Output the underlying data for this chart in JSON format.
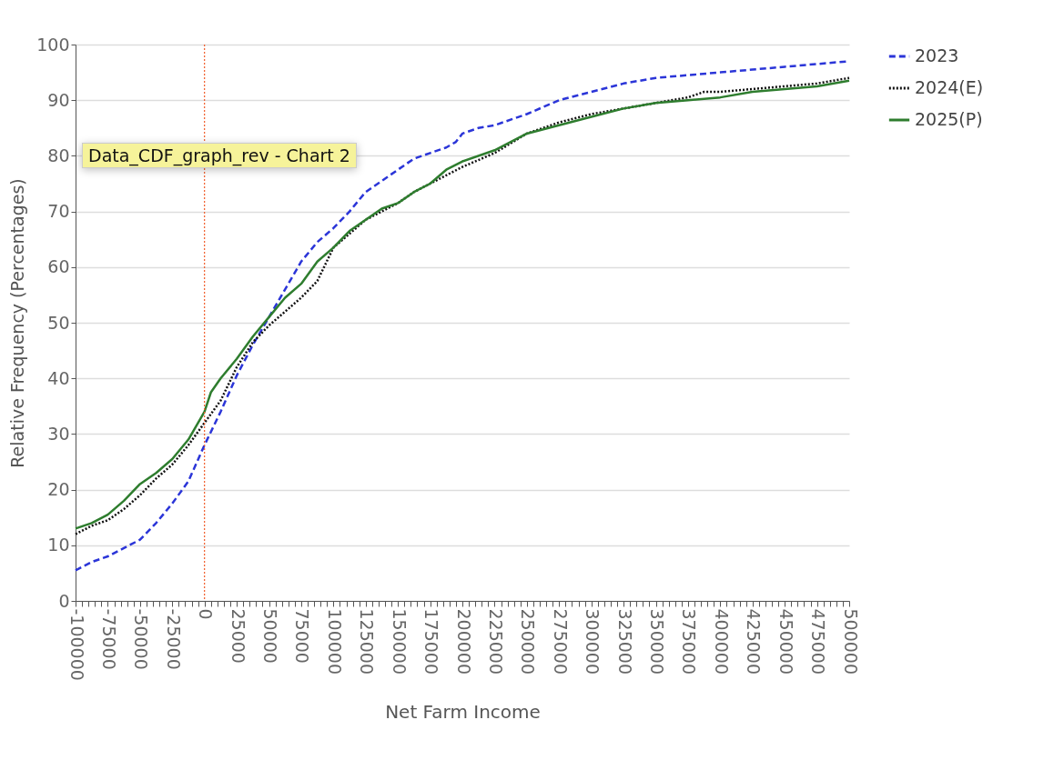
{
  "chart_data": {
    "type": "line",
    "xlabel": "Net Farm Income",
    "ylabel": "Relative Frequency (Percentages)",
    "xlim": [
      -100000,
      500000
    ],
    "ylim": [
      0,
      100
    ],
    "xticks": [
      -100000,
      {
        "value": -95000,
        "label": null
      },
      {
        "value": -90000,
        "label": null
      },
      {
        "value": -85000,
        "label": null
      },
      {
        "value": -80000,
        "label": null
      },
      -75000,
      {
        "value": -70000,
        "label": null
      },
      {
        "value": -65000,
        "label": null
      },
      {
        "value": -60000,
        "label": null
      },
      {
        "value": -55000,
        "label": null
      },
      -50000,
      {
        "value": -45000,
        "label": null
      },
      {
        "value": -40000,
        "label": null
      },
      {
        "value": -35000,
        "label": null
      },
      {
        "value": -30000,
        "label": null
      },
      -25000,
      {
        "value": -20000,
        "label": null
      },
      {
        "value": -15000,
        "label": null
      },
      {
        "value": -10000,
        "label": null
      },
      {
        "value": -5000,
        "label": null
      },
      0,
      {
        "value": 5000,
        "label": null
      },
      {
        "value": 10000,
        "label": null
      },
      {
        "value": 15000,
        "label": null
      },
      {
        "value": 20000,
        "label": null
      },
      25000,
      {
        "value": 30000,
        "label": null
      },
      {
        "value": 35000,
        "label": null
      },
      {
        "value": 40000,
        "label": null
      },
      {
        "value": 45000,
        "label": null
      },
      50000,
      {
        "value": 55000,
        "label": null
      },
      {
        "value": 60000,
        "label": null
      },
      {
        "value": 65000,
        "label": null
      },
      {
        "value": 70000,
        "label": null
      },
      75000,
      {
        "value": 80000,
        "label": null
      },
      {
        "value": 85000,
        "label": null
      },
      {
        "value": 90000,
        "label": null
      },
      {
        "value": 95000,
        "label": null
      },
      100000,
      {
        "value": 105000,
        "label": null
      },
      {
        "value": 110000,
        "label": null
      },
      {
        "value": 115000,
        "label": null
      },
      {
        "value": 120000,
        "label": null
      },
      125000,
      {
        "value": 130000,
        "label": null
      },
      {
        "value": 135000,
        "label": null
      },
      {
        "value": 140000,
        "label": null
      },
      {
        "value": 145000,
        "label": null
      },
      150000,
      {
        "value": 155000,
        "label": null
      },
      {
        "value": 160000,
        "label": null
      },
      {
        "value": 165000,
        "label": null
      },
      {
        "value": 170000,
        "label": null
      },
      175000,
      {
        "value": 180000,
        "label": null
      },
      {
        "value": 185000,
        "label": null
      },
      {
        "value": 190000,
        "label": null
      },
      {
        "value": 195000,
        "label": null
      },
      200000,
      {
        "value": 205000,
        "label": null
      },
      {
        "value": 210000,
        "label": null
      },
      {
        "value": 215000,
        "label": null
      },
      {
        "value": 220000,
        "label": null
      },
      225000,
      {
        "value": 230000,
        "label": null
      },
      {
        "value": 235000,
        "label": null
      },
      {
        "value": 240000,
        "label": null
      },
      {
        "value": 245000,
        "label": null
      },
      250000,
      {
        "value": 255000,
        "label": null
      },
      {
        "value": 260000,
        "label": null
      },
      {
        "value": 265000,
        "label": null
      },
      {
        "value": 270000,
        "label": null
      },
      275000,
      {
        "value": 280000,
        "label": null
      },
      {
        "value": 285000,
        "label": null
      },
      {
        "value": 290000,
        "label": null
      },
      {
        "value": 295000,
        "label": null
      },
      300000,
      {
        "value": 305000,
        "label": null
      },
      {
        "value": 310000,
        "label": null
      },
      {
        "value": 315000,
        "label": null
      },
      {
        "value": 320000,
        "label": null
      },
      325000,
      {
        "value": 330000,
        "label": null
      },
      {
        "value": 335000,
        "label": null
      },
      {
        "value": 340000,
        "label": null
      },
      {
        "value": 345000,
        "label": null
      },
      350000,
      {
        "value": 355000,
        "label": null
      },
      {
        "value": 360000,
        "label": null
      },
      {
        "value": 365000,
        "label": null
      },
      {
        "value": 370000,
        "label": null
      },
      375000,
      {
        "value": 380000,
        "label": null
      },
      {
        "value": 385000,
        "label": null
      },
      {
        "value": 390000,
        "label": null
      },
      {
        "value": 395000,
        "label": null
      },
      400000,
      {
        "value": 405000,
        "label": null
      },
      {
        "value": 410000,
        "label": null
      },
      {
        "value": 415000,
        "label": null
      },
      {
        "value": 420000,
        "label": null
      },
      425000,
      {
        "value": 430000,
        "label": null
      },
      {
        "value": 435000,
        "label": null
      },
      {
        "value": 440000,
        "label": null
      },
      {
        "value": 445000,
        "label": null
      },
      450000,
      {
        "value": 455000,
        "label": null
      },
      {
        "value": 460000,
        "label": null
      },
      {
        "value": 465000,
        "label": null
      },
      {
        "value": 470000,
        "label": null
      },
      475000,
      {
        "value": 480000,
        "label": null
      },
      {
        "value": 485000,
        "label": null
      },
      {
        "value": 490000,
        "label": null
      },
      {
        "value": 495000,
        "label": null
      },
      500000
    ],
    "yticks": [
      0,
      10,
      20,
      30,
      40,
      50,
      60,
      70,
      80,
      90,
      100
    ],
    "grid": "y",
    "legend": "top right",
    "marker": "none",
    "series": [
      {
        "name": "2023",
        "color": "#2b35d8",
        "line_style": "dashed",
        "x": [
          -100000,
          -87500,
          -75000,
          -62500,
          -50000,
          -37500,
          -25000,
          -12500,
          0,
          12500,
          25000,
          37500,
          50000,
          62500,
          75000,
          87500,
          100000,
          112500,
          125000,
          137500,
          150000,
          162500,
          175000,
          187500,
          195000,
          200000,
          212500,
          225000,
          250000,
          275000,
          300000,
          325000,
          350000,
          375000,
          400000,
          425000,
          450000,
          475000,
          500000
        ],
        "values": [
          5.5,
          7,
          8,
          9.5,
          11,
          14,
          17.5,
          21.5,
          28,
          34,
          40.5,
          46,
          51,
          56,
          61,
          64.5,
          67,
          70,
          73.5,
          75.5,
          77.5,
          79.5,
          80.5,
          81.5,
          82.5,
          84,
          85,
          85.5,
          87.5,
          90,
          91.5,
          93,
          94,
          94.5,
          95,
          95.5,
          96,
          96.5,
          97
        ]
      },
      {
        "name": "2024(E)",
        "color": "#111111",
        "line_style": "dotted",
        "x": [
          -100000,
          -87500,
          -75000,
          -62500,
          -50000,
          -37500,
          -25000,
          -12500,
          0,
          12500,
          25000,
          37500,
          50000,
          62500,
          75000,
          87500,
          100000,
          112500,
          125000,
          137500,
          150000,
          162500,
          175000,
          187500,
          200000,
          225000,
          250000,
          275000,
          300000,
          325000,
          350000,
          375000,
          387500,
          400000,
          425000,
          450000,
          475000,
          500000
        ],
        "values": [
          12,
          13.5,
          14.5,
          16.5,
          19,
          22,
          24.5,
          28,
          32,
          36,
          42,
          46.5,
          49.5,
          52,
          54.5,
          57.5,
          63.5,
          66,
          68.5,
          70,
          71.5,
          73.5,
          75,
          76.5,
          78,
          80.5,
          84,
          86,
          87.5,
          88.5,
          89.5,
          90.5,
          91.5,
          91.5,
          92,
          92.5,
          93,
          94
        ]
      },
      {
        "name": "2025(P)",
        "color": "#2e7d2e",
        "line_style": "solid",
        "x": [
          -100000,
          -87500,
          -75000,
          -62500,
          -50000,
          -37500,
          -25000,
          -12500,
          0,
          5000,
          12500,
          25000,
          37500,
          50000,
          62500,
          75000,
          87500,
          100000,
          112500,
          125000,
          137500,
          150000,
          162500,
          175000,
          187500,
          200000,
          225000,
          250000,
          275000,
          300000,
          325000,
          350000,
          375000,
          400000,
          425000,
          450000,
          475000,
          500000
        ],
        "values": [
          13,
          14,
          15.5,
          18,
          21,
          23,
          25.5,
          29,
          34,
          37.5,
          40,
          43.5,
          47.5,
          51,
          54.5,
          57,
          61,
          63.5,
          66.5,
          68.5,
          70.5,
          71.5,
          73.5,
          75,
          77.5,
          79,
          81,
          84,
          85.5,
          87,
          88.5,
          89.5,
          90,
          90.5,
          91.5,
          92,
          92.5,
          93.5
        ]
      }
    ],
    "ref_lines": [
      {
        "axis": "x",
        "value": 0,
        "color": "#f05a28",
        "line_style": "dotted"
      }
    ],
    "annotations": [
      "Data_CDF_graph_rev - Chart 2"
    ]
  }
}
